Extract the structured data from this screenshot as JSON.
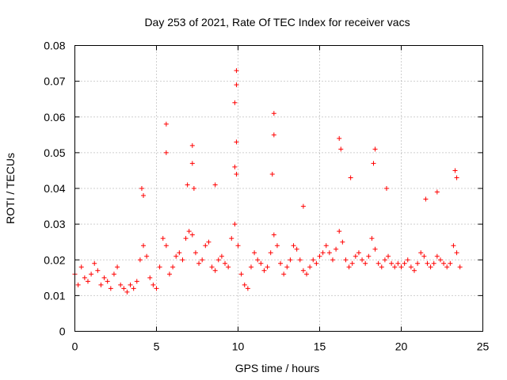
{
  "chart_data": {
    "type": "scatter",
    "title": "Day 253 of 2021, Rate Of TEC Index for receiver vacs",
    "xlabel": "GPS time / hours",
    "ylabel": "ROTI / TECUs",
    "xlim": [
      0,
      25
    ],
    "ylim": [
      0,
      0.08
    ],
    "xticks": [
      0,
      5,
      10,
      15,
      20,
      25
    ],
    "xtick_labels": [
      "0",
      "5",
      "10",
      "15",
      "20",
      "25"
    ],
    "yticks": [
      0,
      0.01,
      0.02,
      0.03,
      0.04,
      0.05,
      0.06,
      0.07,
      0.08
    ],
    "ytick_labels": [
      "0",
      "0.01",
      "0.02",
      "0.03",
      "0.04",
      "0.05",
      "0.06",
      "0.07",
      "0.08"
    ],
    "grid": true,
    "marker": "+",
    "color": "#ff0000",
    "series": [
      {
        "x": [
          0.0,
          0.2,
          0.4,
          0.6,
          0.8,
          1.0,
          1.2,
          1.4,
          1.6,
          1.8,
          2.0,
          2.2,
          2.4,
          2.6,
          2.8,
          3.0,
          3.2,
          3.4,
          3.6,
          3.8,
          4.0,
          4.2,
          4.4,
          4.6,
          4.8,
          5.0,
          5.2,
          5.4,
          5.6,
          5.8,
          6.0,
          6.2,
          6.4,
          6.6,
          6.8,
          7.0,
          7.2,
          7.4,
          7.6,
          7.8,
          8.0,
          8.2,
          8.4,
          8.6,
          8.8,
          9.0,
          9.2,
          9.4,
          9.6,
          9.8,
          10.0,
          10.2,
          10.4,
          10.6,
          10.8,
          11.0,
          11.2,
          11.4,
          11.6,
          11.8,
          12.0,
          12.2,
          12.4,
          12.6,
          12.8,
          13.0,
          13.2,
          13.4,
          13.6,
          13.8,
          14.0,
          14.2,
          14.4,
          14.6,
          14.8,
          15.0,
          15.2,
          15.4,
          15.6,
          15.8,
          16.0,
          16.2,
          16.4,
          16.6,
          16.8,
          17.0,
          17.2,
          17.4,
          17.6,
          17.8,
          18.0,
          18.2,
          18.4,
          18.6,
          18.8,
          19.0,
          19.2,
          19.4,
          19.6,
          19.8,
          20.0,
          20.2,
          20.4,
          20.6,
          20.8,
          21.0,
          21.2,
          21.4,
          21.6,
          21.8,
          22.0,
          22.2,
          22.4,
          22.6,
          22.8,
          23.0,
          23.2,
          23.4,
          23.6,
          9.9,
          9.9,
          9.8,
          9.9,
          12.2,
          12.2,
          5.6,
          5.6,
          7.2,
          7.2,
          16.2,
          16.3,
          18.4,
          18.3,
          9.8,
          9.9,
          12.1,
          23.3,
          23.4,
          4.1,
          4.2,
          6.9,
          7.3,
          8.6,
          14.0,
          16.9,
          19.1,
          21.5,
          22.2
        ],
        "y": [
          0.016,
          0.013,
          0.018,
          0.015,
          0.014,
          0.016,
          0.019,
          0.017,
          0.013,
          0.015,
          0.014,
          0.012,
          0.016,
          0.018,
          0.013,
          0.012,
          0.011,
          0.013,
          0.012,
          0.014,
          0.02,
          0.024,
          0.021,
          0.015,
          0.013,
          0.012,
          0.018,
          0.026,
          0.024,
          0.016,
          0.018,
          0.021,
          0.022,
          0.02,
          0.026,
          0.028,
          0.027,
          0.022,
          0.019,
          0.02,
          0.024,
          0.025,
          0.018,
          0.017,
          0.02,
          0.021,
          0.019,
          0.018,
          0.026,
          0.03,
          0.024,
          0.016,
          0.013,
          0.012,
          0.018,
          0.022,
          0.02,
          0.019,
          0.017,
          0.018,
          0.022,
          0.027,
          0.024,
          0.019,
          0.016,
          0.018,
          0.02,
          0.024,
          0.023,
          0.02,
          0.017,
          0.016,
          0.018,
          0.02,
          0.019,
          0.021,
          0.022,
          0.024,
          0.022,
          0.02,
          0.023,
          0.028,
          0.025,
          0.02,
          0.018,
          0.019,
          0.021,
          0.022,
          0.02,
          0.019,
          0.021,
          0.026,
          0.023,
          0.019,
          0.018,
          0.02,
          0.021,
          0.019,
          0.018,
          0.019,
          0.018,
          0.019,
          0.02,
          0.018,
          0.017,
          0.019,
          0.022,
          0.021,
          0.019,
          0.018,
          0.019,
          0.021,
          0.02,
          0.019,
          0.018,
          0.019,
          0.024,
          0.022,
          0.018,
          0.073,
          0.069,
          0.064,
          0.053,
          0.061,
          0.055,
          0.058,
          0.05,
          0.052,
          0.047,
          0.054,
          0.051,
          0.051,
          0.047,
          0.046,
          0.044,
          0.044,
          0.045,
          0.043,
          0.04,
          0.038,
          0.041,
          0.04,
          0.041,
          0.035,
          0.043,
          0.04,
          0.037,
          0.039
        ]
      }
    ]
  }
}
